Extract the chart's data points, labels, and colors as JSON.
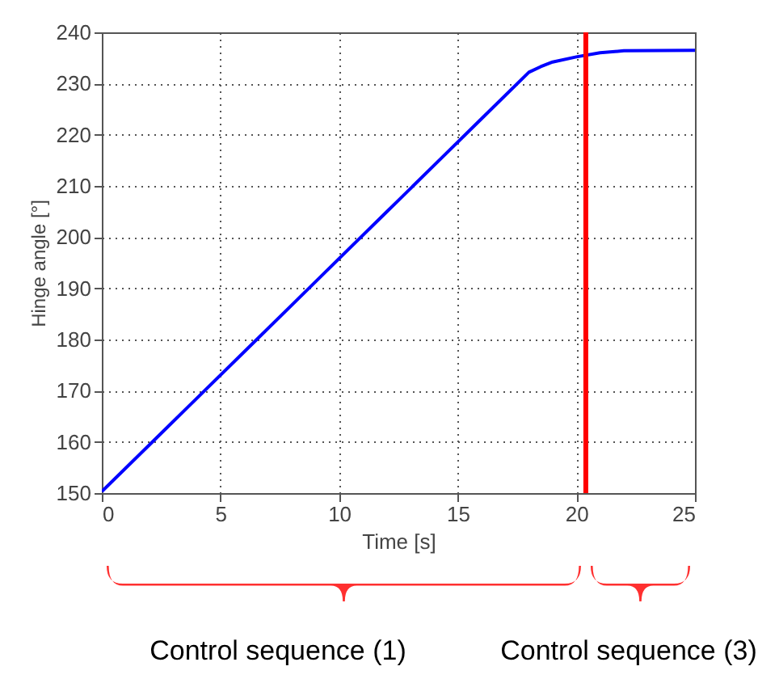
{
  "chart_data": {
    "type": "line",
    "xlabel": "Time [s]",
    "ylabel": "Hinge angle [°]",
    "x": [
      0,
      2,
      4,
      6,
      8,
      10,
      12,
      14,
      16,
      18,
      18.5,
      19,
      20,
      21,
      22,
      25
    ],
    "series": [
      {
        "color": "#0000ff",
        "values": [
          150.3,
          159.4,
          168.5,
          177.6,
          186.7,
          195.8,
          204.9,
          214,
          223.1,
          232.2,
          233.3,
          234.2,
          235.2,
          236,
          236.4,
          236.5
        ]
      }
    ],
    "xlim": [
      0,
      25
    ],
    "xticks": [
      0,
      5,
      10,
      15,
      20,
      25
    ],
    "ylim": [
      150,
      240
    ],
    "yticks": [
      150,
      160,
      170,
      180,
      190,
      200,
      210,
      220,
      230,
      240
    ],
    "grid": true,
    "line_style": "solid",
    "marker": "none",
    "ref_lines": [
      {
        "axis": "x",
        "value": 20.4,
        "color": "#ff0000"
      }
    ],
    "annotations": [
      "Control sequence (1)",
      "Control sequence (3)"
    ]
  }
}
